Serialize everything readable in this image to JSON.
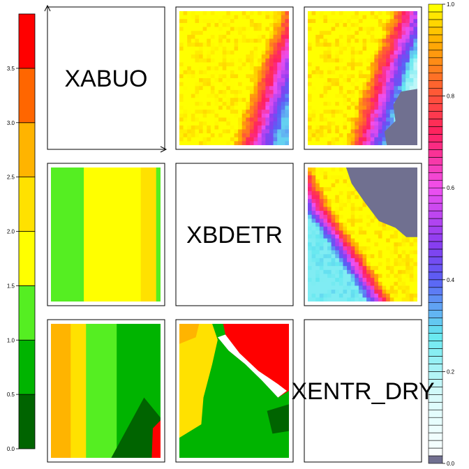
{
  "chart_data": {
    "type": "heatmap",
    "variables": [
      "XABUO",
      "XBDETR",
      "XENTR_DRY"
    ],
    "diagonal_labels": [
      "XABUO",
      "XBDETR",
      "XENTR_DRY"
    ],
    "left_colorbar": {
      "min": 0.0,
      "max": 3.5,
      "ticks": [
        0.0,
        0.5,
        1.0,
        1.5,
        2.0,
        2.5,
        3.0,
        3.5
      ],
      "tick_labels": [
        "0.0",
        "0.5",
        "1.0",
        "1.5",
        "2.0",
        "2.5",
        "3.0",
        "3.5"
      ],
      "bands": [
        {
          "from": 0.0,
          "to": 0.5,
          "color": "#006400"
        },
        {
          "from": 0.5,
          "to": 1.0,
          "color": "#00b400"
        },
        {
          "from": 1.0,
          "to": 1.5,
          "color": "#55ee22"
        },
        {
          "from": 1.5,
          "to": 2.0,
          "color": "#ffff00"
        },
        {
          "from": 2.0,
          "to": 2.5,
          "color": "#ffe100"
        },
        {
          "from": 2.5,
          "to": 3.0,
          "color": "#ffb400"
        },
        {
          "from": 3.0,
          "to": 3.5,
          "color": "#ff6600"
        },
        {
          "from": 3.5,
          "to": 4.0,
          "color": "#ff0000"
        }
      ]
    },
    "right_colorbar": {
      "min": 0.0,
      "max": 1.0,
      "ticks": [
        0.0,
        0.2,
        0.4,
        0.6,
        0.8,
        1.0
      ],
      "tick_labels": [
        "0.0",
        "0.2",
        "0.4",
        "0.6",
        "0.8",
        "1.0"
      ],
      "bottom_color": "#707090",
      "top_color": "#ffff00",
      "stops": [
        {
          "v": 0.0,
          "color": "#ffffff"
        },
        {
          "v": 0.15,
          "color": "#d8fbfb"
        },
        {
          "v": 0.28,
          "color": "#66e8f0"
        },
        {
          "v": 0.4,
          "color": "#5a5ff5"
        },
        {
          "v": 0.48,
          "color": "#8a3cf0"
        },
        {
          "v": 0.6,
          "color": "#f050f0"
        },
        {
          "v": 0.72,
          "color": "#ff2060"
        },
        {
          "v": 0.82,
          "color": "#ff6030"
        },
        {
          "v": 0.92,
          "color": "#ffb000"
        },
        {
          "v": 1.0,
          "color": "#ffff00"
        }
      ]
    },
    "panels": [
      {
        "row": 1,
        "col": 2,
        "palette": "right",
        "front": [
          [
            0,
            0.9
          ],
          [
            0.4,
            0.7
          ],
          [
            0.8,
            0.55
          ],
          [
            1,
            0.47
          ]
        ],
        "hi_value": 1.0,
        "lo_value": 0.3,
        "width": 0.42,
        "mask": null
      },
      {
        "row": 1,
        "col": 3,
        "palette": "right",
        "front": [
          [
            0,
            0.75
          ],
          [
            0.4,
            0.55
          ],
          [
            0.8,
            0.4
          ],
          [
            1,
            0.33
          ]
        ],
        "hi_value": 1.0,
        "lo_value": 0.18,
        "width": 0.45,
        "mask": {
          "poly": [
            [
              1.0,
              0.58
            ],
            [
              0.85,
              0.6
            ],
            [
              0.78,
              0.7
            ],
            [
              0.8,
              0.82
            ],
            [
              0.7,
              0.9
            ],
            [
              0.72,
              1.0
            ],
            [
              1.0,
              1.0
            ]
          ]
        }
      },
      {
        "row": 2,
        "col": 1,
        "palette": "left",
        "front": null,
        "columns": [
          {
            "to": 0.3,
            "value": 1.25
          },
          {
            "to": 0.82,
            "value": 1.75
          },
          {
            "to": 0.96,
            "value": 2.25
          },
          {
            "to": 1.0,
            "value": 1.25
          }
        ],
        "mask": null
      },
      {
        "row": 2,
        "col": 3,
        "palette": "right",
        "front": [
          [
            0,
            0.05
          ],
          [
            0.3,
            0.22
          ],
          [
            0.6,
            0.48
          ],
          [
            1,
            0.8
          ]
        ],
        "hi_value": 1.0,
        "lo_value": 0.25,
        "width": 0.28,
        "reverse_y": true,
        "mask": {
          "poly": [
            [
              0.35,
              0.0
            ],
            [
              1.0,
              0.0
            ],
            [
              1.0,
              0.52
            ],
            [
              0.9,
              0.52
            ],
            [
              0.8,
              0.45
            ],
            [
              0.65,
              0.4
            ],
            [
              0.52,
              0.26
            ],
            [
              0.4,
              0.12
            ]
          ]
        }
      },
      {
        "row": 3,
        "col": 1,
        "palette": "left",
        "front": null,
        "columns": [
          {
            "to": 0.18,
            "value": 2.75
          },
          {
            "to": 0.32,
            "value": 2.25
          },
          {
            "to": 0.6,
            "value": 1.25
          },
          {
            "to": 1.0,
            "value": 0.75
          }
        ],
        "corner": {
          "poly": [
            [
              0.55,
              1.0
            ],
            [
              0.85,
              0.55
            ],
            [
              1.0,
              0.7
            ],
            [
              1.0,
              1.0
            ]
          ],
          "value": 0.25,
          "edge": {
            "poly": [
              [
                0.92,
                1.0
              ],
              [
                0.93,
                0.78
              ],
              [
                1.0,
                0.72
              ],
              [
                1.0,
                1.0
              ]
            ],
            "value": 3.75
          }
        },
        "mask": null
      },
      {
        "row": 3,
        "col": 2,
        "palette": "left",
        "front": null,
        "columns": [
          {
            "to": 1.0,
            "value": 0.75
          }
        ],
        "regions": [
          {
            "poly": [
              [
                0,
                0
              ],
              [
                0.3,
                0
              ],
              [
                0.35,
                0.12
              ],
              [
                0.3,
                0.3
              ],
              [
                0.22,
                0.55
              ],
              [
                0.2,
                0.75
              ],
              [
                0,
                0.85
              ]
            ],
            "value": 2.25
          },
          {
            "poly": [
              [
                0,
                0
              ],
              [
                0.18,
                0
              ],
              [
                0.15,
                0.1
              ],
              [
                0,
                0.15
              ]
            ],
            "value": 2.75
          },
          {
            "poly": [
              [
                0.4,
                0
              ],
              [
                1.0,
                0
              ],
              [
                1.0,
                0.5
              ],
              [
                0.9,
                0.55
              ],
              [
                0.75,
                0.4
              ],
              [
                0.6,
                0.3
              ],
              [
                0.45,
                0.2
              ]
            ],
            "value": 3.75
          },
          {
            "poly": [
              [
                0.8,
                0.65
              ],
              [
                1.0,
                0.6
              ],
              [
                1.0,
                0.8
              ],
              [
                0.85,
                0.82
              ]
            ],
            "value": 0.25
          }
        ],
        "white": {
          "poly": [
            [
              0.35,
              0.1
            ],
            [
              0.45,
              0.2
            ],
            [
              0.6,
              0.3
            ],
            [
              0.75,
              0.42
            ],
            [
              0.9,
              0.55
            ],
            [
              0.98,
              0.5
            ],
            [
              0.9,
              0.45
            ],
            [
              0.72,
              0.35
            ],
            [
              0.55,
              0.22
            ],
            [
              0.42,
              0.08
            ]
          ]
        },
        "mask": null
      }
    ]
  }
}
